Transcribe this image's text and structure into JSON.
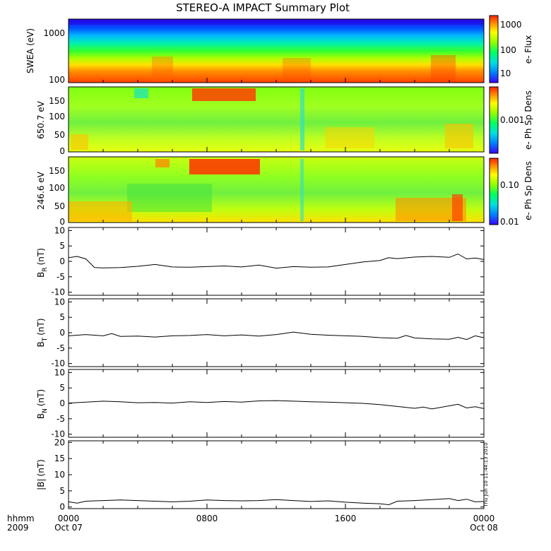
{
  "title": "STEREO-A IMPACT Summary Plot",
  "footer": {
    "time_unit": "hhmm",
    "year": "2009",
    "start_date": "Oct 07",
    "end_date": "Oct 08",
    "x_ticks": [
      "0000",
      "0800",
      "1600",
      "0000"
    ],
    "stamp": "Thu Jun 10 11:44:13 2010"
  },
  "colors": {
    "line": "#000000",
    "background": "#ffffff",
    "colorbar": [
      "#3a00ff",
      "#0080ff",
      "#00e0e0",
      "#00ff60",
      "#90ff00",
      "#ffff00",
      "#ff9000",
      "#ff2000"
    ]
  },
  "chart_data": [
    {
      "type": "heatmap",
      "ylabel": "SWEA (eV)",
      "y_scale": "log",
      "ylim": [
        100,
        1700
      ],
      "y_ticks": [
        "1000",
        "100"
      ],
      "colorbar_label": "e- Flux",
      "colorbar_scale": "log",
      "colorbar_ticks": [
        "1000",
        "100",
        "10"
      ],
      "xlim_hours": [
        0,
        24
      ]
    },
    {
      "type": "heatmap",
      "ylabel": "650.7 eV",
      "ylim": [
        -10,
        180
      ],
      "y_ticks": [
        "150",
        "100",
        "50",
        "0"
      ],
      "colorbar_label": "e- Ph Sp Dens",
      "colorbar_ticks": [
        "0.001"
      ],
      "xlim_hours": [
        0,
        24
      ]
    },
    {
      "type": "heatmap",
      "ylabel": "246.6 eV",
      "ylim": [
        -10,
        180
      ],
      "y_ticks": [
        "150",
        "100",
        "50",
        "0"
      ],
      "colorbar_label": "e- Ph Sp Dens",
      "colorbar_ticks": [
        "0.10",
        "0.01"
      ],
      "xlim_hours": [
        0,
        24
      ]
    },
    {
      "type": "line",
      "ylabel_main": "B",
      "ylabel_sub": "R",
      "ylabel_unit": "(nT)",
      "ylim": [
        -11,
        11
      ],
      "y_ticks": [
        "10",
        "5",
        "0",
        "-5",
        "-10"
      ],
      "x_hours": [
        0,
        0.5,
        1.0,
        1.5,
        2.0,
        3.0,
        4.0,
        5.0,
        6.0,
        7.0,
        8.0,
        9.0,
        10.0,
        11.0,
        12.0,
        13.0,
        14.0,
        15.0,
        16.0,
        17.0,
        18.0,
        18.5,
        19.0,
        20.0,
        21.0,
        22.0,
        22.5,
        23.0,
        23.5,
        24.0
      ],
      "values": [
        1.2,
        1.6,
        0.8,
        -2.0,
        -2.1,
        -2.0,
        -1.6,
        -1.0,
        -1.8,
        -1.9,
        -1.7,
        -1.5,
        -1.8,
        -1.2,
        -2.2,
        -1.7,
        -1.9,
        -1.8,
        -1.0,
        -0.2,
        0.3,
        1.2,
        0.9,
        1.4,
        1.6,
        1.3,
        2.4,
        0.8,
        1.1,
        0.6
      ]
    },
    {
      "type": "line",
      "ylabel_main": "B",
      "ylabel_sub": "T",
      "ylabel_unit": "(nT)",
      "ylim": [
        -11,
        11
      ],
      "y_ticks": [
        "10",
        "5",
        "0",
        "-5",
        "-10"
      ],
      "x_hours": [
        0,
        1,
        2,
        2.5,
        3,
        4,
        5,
        6,
        7,
        8,
        9,
        10,
        11,
        12,
        13,
        14,
        15,
        16,
        17,
        18,
        19,
        19.5,
        20,
        21,
        22,
        22.5,
        23,
        23.5,
        24
      ],
      "values": [
        -1.0,
        -0.6,
        -1.0,
        -0.3,
        -1.2,
        -1.1,
        -1.4,
        -1.0,
        -0.9,
        -0.6,
        -1.0,
        -0.7,
        -1.1,
        -0.6,
        0.2,
        -0.5,
        -0.8,
        -1.0,
        -1.2,
        -1.6,
        -1.8,
        -0.9,
        -1.7,
        -2.0,
        -2.1,
        -1.5,
        -2.2,
        -1.0,
        -1.6
      ]
    },
    {
      "type": "line",
      "ylabel_main": "B",
      "ylabel_sub": "N",
      "ylabel_unit": "(nT)",
      "ylim": [
        -11,
        11
      ],
      "y_ticks": [
        "10",
        "5",
        "0",
        "-5",
        "-10"
      ],
      "x_hours": [
        0,
        1,
        2,
        3,
        4,
        5,
        6,
        7,
        8,
        9,
        10,
        11,
        12,
        13,
        14,
        15,
        16,
        17,
        18,
        19,
        20,
        20.5,
        21,
        22,
        22.5,
        23,
        23.5,
        24
      ],
      "values": [
        0.1,
        0.4,
        0.7,
        0.5,
        0.2,
        0.3,
        0.1,
        0.5,
        0.3,
        0.6,
        0.4,
        0.8,
        0.9,
        0.7,
        0.5,
        0.4,
        0.2,
        0.0,
        -0.4,
        -1.0,
        -1.6,
        -1.2,
        -1.8,
        -0.8,
        -0.3,
        -1.5,
        -1.1,
        -1.7
      ]
    },
    {
      "type": "line",
      "ylabel_main": "|B|",
      "ylabel_sub": "",
      "ylabel_unit": "(nT)",
      "ylim": [
        -0.5,
        20.5
      ],
      "y_ticks": [
        "20",
        "15",
        "10",
        "5",
        "0"
      ],
      "x_hours": [
        0,
        0.5,
        1,
        2,
        3,
        4,
        5,
        6,
        7,
        8,
        9,
        10,
        11,
        12,
        13,
        14,
        15,
        16,
        17,
        18,
        18.5,
        19,
        20,
        21,
        22,
        22.5,
        23,
        23.5,
        24
      ],
      "values": [
        1.6,
        1.2,
        1.8,
        2.0,
        2.2,
        2.0,
        1.8,
        1.6,
        1.8,
        2.2,
        2.0,
        1.9,
        2.0,
        2.3,
        2.0,
        1.7,
        1.9,
        1.5,
        1.2,
        1.0,
        0.7,
        1.8,
        2.0,
        2.3,
        2.6,
        2.0,
        2.4,
        1.6,
        1.7
      ]
    }
  ]
}
